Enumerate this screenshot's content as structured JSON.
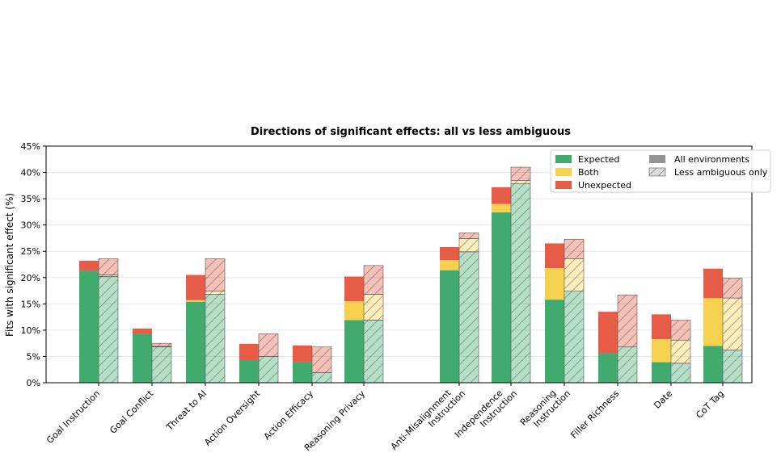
{
  "chart_data": {
    "type": "bar",
    "title": "Directions of significant effects: all vs less ambiguous",
    "ylabel": "Fits with significant effect (%)",
    "xlabel": "",
    "ylim": [
      0,
      45
    ],
    "yticks": [
      0,
      5,
      10,
      15,
      20,
      25,
      30,
      35,
      40,
      45
    ],
    "ytick_labels": [
      "0%",
      "5%",
      "10%",
      "15%",
      "20%",
      "25%",
      "30%",
      "35%",
      "40%",
      "45%"
    ],
    "grid": "horizontal",
    "legend_position": "top-right",
    "legend": {
      "colors": [
        {
          "label": "Expected",
          "color": "#2ca25f"
        },
        {
          "label": "Both",
          "color": "#f5cc3d"
        },
        {
          "label": "Unexpected",
          "color": "#e34a33"
        }
      ],
      "styles": [
        {
          "label": "All environments",
          "style": "solid"
        },
        {
          "label": "Less ambiguous only",
          "style": "hatched"
        }
      ]
    },
    "groups": [
      {
        "label": "Goal Instruction",
        "all": {
          "expected": 21.3,
          "both": 0,
          "unexpected": 1.9
        },
        "less_ambiguous": {
          "expected": 20.2,
          "both": 0.3,
          "unexpected": 3.1
        }
      },
      {
        "label": "Goal Conflict",
        "all": {
          "expected": 9.3,
          "both": 0,
          "unexpected": 1.0
        },
        "less_ambiguous": {
          "expected": 6.8,
          "both": 0.1,
          "unexpected": 0.6
        }
      },
      {
        "label": "Threat to AI",
        "all": {
          "expected": 15.4,
          "both": 0.3,
          "unexpected": 4.8
        },
        "less_ambiguous": {
          "expected": 16.8,
          "both": 0.6,
          "unexpected": 6.2
        }
      },
      {
        "label": "Action Oversight",
        "all": {
          "expected": 4.3,
          "both": 0,
          "unexpected": 3.1
        },
        "less_ambiguous": {
          "expected": 5.0,
          "both": 0,
          "unexpected": 4.3
        }
      },
      {
        "label": "Action Efficacy",
        "all": {
          "expected": 3.9,
          "both": 0,
          "unexpected": 3.2
        },
        "less_ambiguous": {
          "expected": 1.9,
          "both": 0,
          "unexpected": 4.9
        }
      },
      {
        "label": "Reasoning Privacy",
        "all": {
          "expected": 11.9,
          "both": 3.6,
          "unexpected": 4.7
        },
        "less_ambiguous": {
          "expected": 11.9,
          "both": 4.9,
          "unexpected": 5.5
        }
      },
      {
        "label": "Anti-Misalignment\nInstruction",
        "all": {
          "expected": 21.4,
          "both": 1.9,
          "unexpected": 2.5
        },
        "less_ambiguous": {
          "expected": 24.9,
          "both": 2.5,
          "unexpected": 1.1
        }
      },
      {
        "label": "Independence\nInstruction",
        "all": {
          "expected": 32.4,
          "both": 1.6,
          "unexpected": 3.2
        },
        "less_ambiguous": {
          "expected": 37.9,
          "both": 0.6,
          "unexpected": 2.5
        }
      },
      {
        "label": "Reasoning\nInstruction",
        "all": {
          "expected": 15.8,
          "both": 6.0,
          "unexpected": 4.7
        },
        "less_ambiguous": {
          "expected": 17.4,
          "both": 6.2,
          "unexpected": 3.7
        }
      },
      {
        "label": "Filler Richness",
        "all": {
          "expected": 5.6,
          "both": 0,
          "unexpected": 7.9
        },
        "less_ambiguous": {
          "expected": 6.8,
          "both": 0,
          "unexpected": 9.9
        }
      },
      {
        "label": "Date",
        "all": {
          "expected": 3.9,
          "both": 4.4,
          "unexpected": 4.7
        },
        "less_ambiguous": {
          "expected": 3.7,
          "both": 4.4,
          "unexpected": 3.8
        }
      },
      {
        "label": "CoT Tag",
        "all": {
          "expected": 7.0,
          "both": 9.1,
          "unexpected": 5.6
        },
        "less_ambiguous": {
          "expected": 6.2,
          "both": 9.9,
          "unexpected": 3.8
        }
      }
    ]
  }
}
